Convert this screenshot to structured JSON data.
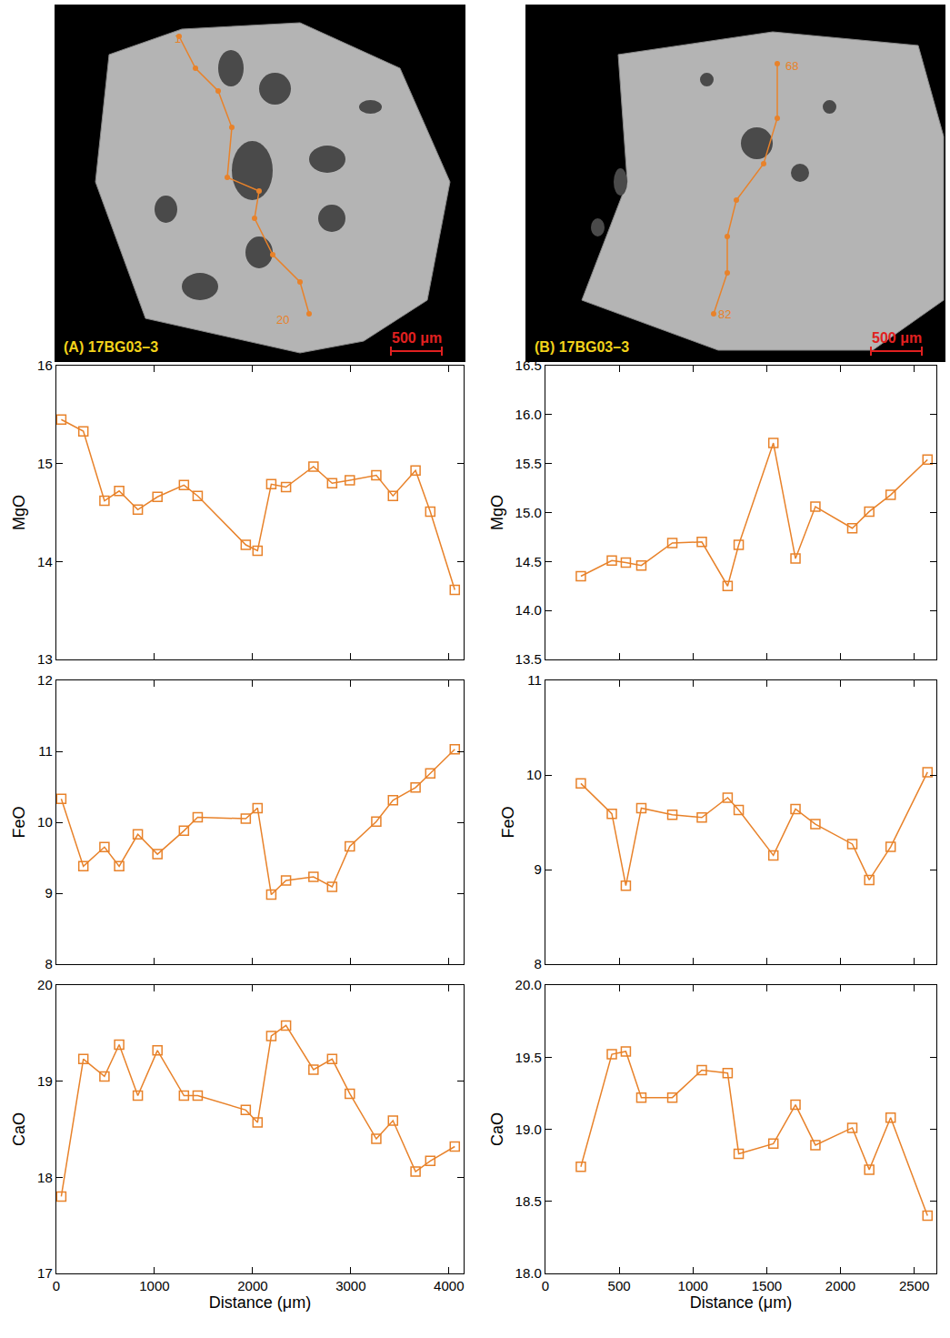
{
  "images": [
    {
      "label": "(A) 17BG03–3",
      "scale": "500 μm",
      "points": [
        "1",
        "20"
      ]
    },
    {
      "label": "(B) 17BG03–3",
      "scale": "500 μm",
      "points": [
        "68",
        "82"
      ]
    }
  ],
  "chart_data": [
    {
      "type": "line",
      "ylabel": "MgO",
      "tick_labels": "y",
      "marker": "square-open",
      "color": "#E8822A",
      "x": [
        50,
        275,
        490,
        640,
        830,
        1030,
        1300,
        1440,
        1930,
        2050,
        2190,
        2340,
        2620,
        2810,
        2990,
        3260,
        3430,
        3660,
        3810,
        4060
      ],
      "values": [
        15.45,
        15.33,
        14.62,
        14.72,
        14.53,
        14.66,
        14.78,
        14.67,
        14.17,
        14.11,
        14.79,
        14.76,
        14.97,
        14.8,
        14.83,
        14.88,
        14.67,
        14.93,
        14.51,
        13.71
      ],
      "xlim": [
        0,
        4150
      ],
      "xticks": [
        0,
        1000,
        2000,
        3000,
        4000
      ],
      "ylim": [
        13,
        16
      ],
      "yticks": [
        13,
        14,
        15,
        16
      ]
    },
    {
      "type": "line",
      "ylabel": "FeO",
      "tick_labels": "y",
      "marker": "square-open",
      "color": "#E8822A",
      "x": [
        50,
        275,
        490,
        640,
        830,
        1030,
        1300,
        1440,
        1930,
        2050,
        2190,
        2340,
        2620,
        2810,
        2990,
        3260,
        3430,
        3660,
        3810,
        4060
      ],
      "values": [
        10.33,
        9.38,
        9.65,
        9.38,
        9.83,
        9.55,
        9.88,
        10.07,
        10.05,
        10.2,
        8.98,
        9.18,
        9.23,
        9.09,
        9.66,
        10.01,
        10.31,
        10.49,
        10.69,
        11.03
      ],
      "xlim": [
        0,
        4150
      ],
      "xticks": [
        0,
        1000,
        2000,
        3000,
        4000
      ],
      "ylim": [
        8,
        12
      ],
      "yticks": [
        8,
        9,
        10,
        11,
        12
      ]
    },
    {
      "type": "line",
      "ylabel": "CaO",
      "xlabel": "Distance (μm)",
      "tick_labels": true,
      "marker": "square-open",
      "color": "#E8822A",
      "x": [
        50,
        275,
        490,
        640,
        830,
        1030,
        1300,
        1440,
        1930,
        2050,
        2190,
        2340,
        2620,
        2810,
        2990,
        3260,
        3430,
        3660,
        3810,
        4060
      ],
      "values": [
        17.8,
        19.23,
        19.05,
        19.38,
        18.85,
        19.32,
        18.85,
        18.85,
        18.7,
        18.57,
        19.47,
        19.58,
        19.12,
        19.23,
        18.87,
        18.4,
        18.59,
        18.06,
        18.17,
        18.32
      ],
      "xlim": [
        0,
        4150
      ],
      "xticks": [
        0,
        1000,
        2000,
        3000,
        4000
      ],
      "ylim": [
        17,
        20
      ],
      "yticks": [
        17,
        18,
        19,
        20
      ]
    },
    {
      "type": "line",
      "ylabel": "MgO",
      "tick_labels": "y",
      "marker": "square-open",
      "color": "#E8822A",
      "x": [
        240,
        450,
        545,
        650,
        860,
        1060,
        1235,
        1310,
        1545,
        1695,
        1830,
        2080,
        2195,
        2340,
        2590
      ],
      "values": [
        14.35,
        14.51,
        14.49,
        14.46,
        14.69,
        14.7,
        14.25,
        14.67,
        15.71,
        14.53,
        15.06,
        14.84,
        15.01,
        15.18,
        15.54
      ],
      "xlim": [
        0,
        2650
      ],
      "xticks": [
        0,
        500,
        1000,
        1500,
        2000,
        2500
      ],
      "ylim": [
        13.5,
        16.5
      ],
      "yticks": [
        13.5,
        {
          "value": 14,
          "label": "14.0"
        },
        14.5,
        {
          "value": 15,
          "label": "15.0"
        },
        15.5,
        {
          "value": 16,
          "label": "16.0"
        },
        16.5
      ]
    },
    {
      "type": "line",
      "ylabel": "FeO",
      "tick_labels": "y",
      "marker": "square-open",
      "color": "#E8822A",
      "x": [
        240,
        450,
        545,
        650,
        860,
        1060,
        1235,
        1310,
        1545,
        1695,
        1830,
        2080,
        2195,
        2340,
        2590
      ],
      "values": [
        9.91,
        9.59,
        8.83,
        9.65,
        9.58,
        9.55,
        9.76,
        9.63,
        9.15,
        9.64,
        9.48,
        9.27,
        8.89,
        9.24,
        10.03
      ],
      "xlim": [
        0,
        2650
      ],
      "xticks": [
        0,
        500,
        1000,
        1500,
        2000,
        2500
      ],
      "ylim": [
        8,
        11
      ],
      "yticks": [
        8,
        9,
        10,
        11
      ]
    },
    {
      "type": "line",
      "ylabel": "CaO",
      "xlabel": "Distance (μm)",
      "tick_labels": true,
      "marker": "square-open",
      "color": "#E8822A",
      "x": [
        240,
        450,
        545,
        650,
        860,
        1060,
        1235,
        1310,
        1545,
        1695,
        1830,
        2080,
        2195,
        2340,
        2590
      ],
      "values": [
        18.74,
        19.52,
        19.54,
        19.22,
        19.22,
        19.41,
        19.39,
        18.83,
        18.9,
        19.17,
        18.89,
        19.01,
        18.72,
        19.08,
        18.4
      ],
      "xlim": [
        0,
        2650
      ],
      "xticks": [
        0,
        500,
        1000,
        1500,
        2000,
        2500
      ],
      "ylim": [
        18,
        20
      ],
      "yticks": [
        {
          "value": 18,
          "label": "18.0"
        },
        18.5,
        {
          "value": 19,
          "label": "19.0"
        },
        19.5,
        {
          "value": 20,
          "label": "20.0"
        }
      ]
    }
  ]
}
